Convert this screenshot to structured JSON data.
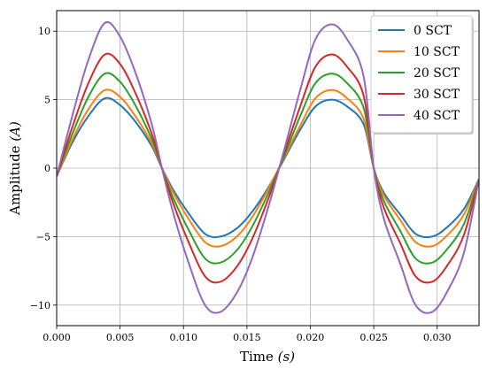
{
  "chart_data": {
    "type": "line",
    "xlabel": "Time",
    "xlabel_unit": "(s)",
    "ylabel": "Amplitude",
    "ylabel_unit": "(A)",
    "xlim": [
      0,
      0.0333
    ],
    "ylim": [
      -11.5,
      11.5
    ],
    "x_ticks": [
      0.0,
      0.005,
      0.01,
      0.015,
      0.02,
      0.025,
      0.03
    ],
    "x_tick_labels": [
      "0.000",
      "0.005",
      "0.010",
      "0.015",
      "0.020",
      "0.025",
      "0.030"
    ],
    "y_ticks": [
      -10,
      -5,
      0,
      5,
      10
    ],
    "y_tick_labels": [
      "−10",
      "−5",
      "0",
      "5",
      "10"
    ],
    "grid": true,
    "legend_position": "top-right",
    "x": [
      0.0,
      0.0012,
      0.0025,
      0.0038,
      0.005,
      0.0062,
      0.0075,
      0.0083,
      0.0092,
      0.0104,
      0.0117,
      0.0129,
      0.0142,
      0.0154,
      0.0167,
      0.0179,
      0.0192,
      0.0204,
      0.0217,
      0.0229,
      0.0242,
      0.025,
      0.0258,
      0.0271,
      0.0283,
      0.0296,
      0.0308,
      0.0321,
      0.0333
    ],
    "series": [
      {
        "name": "0 SCT",
        "color": "#1f77b4",
        "values": [
          -0.6,
          1.8,
          3.8,
          5.1,
          4.6,
          3.4,
          1.6,
          0.0,
          -1.6,
          -3.3,
          -4.8,
          -5.0,
          -4.4,
          -3.2,
          -1.4,
          0.6,
          2.8,
          4.5,
          5.0,
          4.5,
          3.2,
          0.0,
          -1.8,
          -3.4,
          -4.8,
          -5.0,
          -4.3,
          -3.0,
          -0.8
        ]
      },
      {
        "name": "10 SCT",
        "color": "#ff7f0e",
        "values": [
          -0.6,
          2.0,
          4.3,
          5.7,
          5.2,
          3.8,
          1.8,
          0.0,
          -1.8,
          -3.7,
          -5.4,
          -5.7,
          -5.0,
          -3.6,
          -1.5,
          0.7,
          3.1,
          5.1,
          5.7,
          5.1,
          3.6,
          0.0,
          -2.0,
          -3.8,
          -5.4,
          -5.7,
          -4.9,
          -3.4,
          -0.8
        ]
      },
      {
        "name": "20 SCT",
        "color": "#2ca02c",
        "values": [
          -0.6,
          2.4,
          5.2,
          6.9,
          6.3,
          4.6,
          2.1,
          0.0,
          -2.2,
          -4.5,
          -6.6,
          -6.9,
          -6.0,
          -4.3,
          -1.8,
          0.8,
          3.8,
          6.2,
          6.9,
          6.2,
          4.4,
          0.0,
          -2.4,
          -4.6,
          -6.6,
          -6.9,
          -5.9,
          -4.1,
          -0.8
        ]
      },
      {
        "name": "30 SCT",
        "color": "#d62728",
        "values": [
          -0.6,
          2.9,
          6.2,
          8.3,
          7.6,
          5.5,
          2.5,
          0.0,
          -2.6,
          -5.4,
          -7.9,
          -8.3,
          -7.2,
          -5.2,
          -2.2,
          1.0,
          4.5,
          7.4,
          8.3,
          7.4,
          5.3,
          0.0,
          -2.9,
          -5.5,
          -7.9,
          -8.3,
          -7.1,
          -4.9,
          -0.8
        ]
      },
      {
        "name": "40 SCT",
        "color": "#9467bd",
        "values": [
          -0.6,
          3.7,
          7.9,
          10.6,
          9.6,
          7.0,
          3.2,
          0.0,
          -3.3,
          -6.9,
          -10.0,
          -10.5,
          -9.1,
          -6.6,
          -2.8,
          1.2,
          5.7,
          9.4,
          10.5,
          9.4,
          6.7,
          0.0,
          -3.7,
          -7.0,
          -10.0,
          -10.5,
          -9.0,
          -6.2,
          -0.8
        ]
      }
    ]
  }
}
